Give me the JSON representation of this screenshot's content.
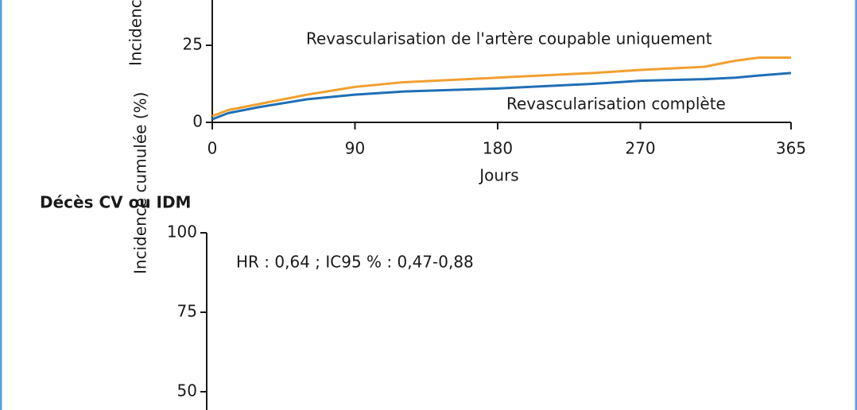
{
  "chart_data": [
    {
      "type": "line",
      "ylabel": "Incidence cumulée (%)",
      "xlabel": "Jours",
      "x": [
        0,
        10,
        30,
        60,
        90,
        120,
        180,
        240,
        270,
        310,
        330,
        345,
        365
      ],
      "xlim": [
        0,
        365
      ],
      "xticks": [
        0,
        90,
        180,
        270,
        365
      ],
      "ylim": [
        0,
        40
      ],
      "yticks": [
        0,
        25
      ],
      "series": [
        {
          "name": "Revascularisation de l'artère coupable uniquement",
          "color": "#f0a030",
          "values": [
            2,
            4,
            6,
            9,
            11.5,
            13,
            14.5,
            16,
            17,
            18,
            20,
            21,
            21
          ]
        },
        {
          "name": "Revascularisation complète",
          "color": "#1f6fb5",
          "values": [
            1,
            3,
            5,
            7.5,
            9,
            10,
            11,
            12.5,
            13.5,
            14,
            14.5,
            15.2,
            16
          ]
        }
      ]
    },
    {
      "type": "line",
      "title": "Décès CV ou IDM",
      "ylabel": "Incidence cumulée (%)",
      "annotation": "HR : 0,64 ; IC95 % : 0,47-0,88",
      "ylim": [
        0,
        100
      ],
      "yticks": [
        50,
        75,
        100
      ]
    }
  ]
}
